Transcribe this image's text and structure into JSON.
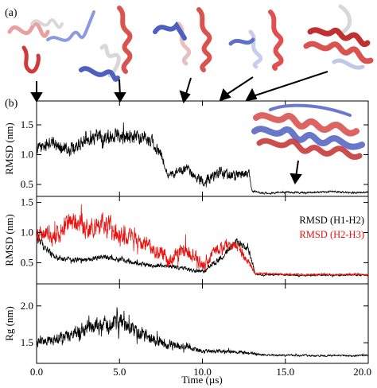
{
  "panel_labels": {
    "a": "(a)",
    "b": "(b)"
  },
  "colors": {
    "black_series": "#000000",
    "red_series": "#e8120e",
    "helix_red": "#d9534f",
    "helix_blue": "#4f5fc0",
    "helix_white": "#d8d8d8"
  },
  "structures": [
    {
      "name": "snapshot-1",
      "time_us": 0.0
    },
    {
      "name": "snapshot-2",
      "time_us": 5.0
    },
    {
      "name": "snapshot-3",
      "time_us": 9.0
    },
    {
      "name": "snapshot-4",
      "time_us": 11.0
    },
    {
      "name": "snapshot-5",
      "time_us": 12.0
    }
  ],
  "inset": {
    "name": "folded-overlay",
    "time_us": 15.5
  },
  "chart_data": [
    {
      "type": "line",
      "panel": "top",
      "ylabel": "RMSD (nm)",
      "xlim": [
        0,
        20
      ],
      "ylim": [
        0.3,
        1.9
      ],
      "yticks": [
        0.5,
        1.0,
        1.5
      ],
      "ytick_labels": [
        "0.5",
        "1.0",
        "1.5"
      ],
      "series": [
        {
          "color": "#000000",
          "x": [
            0,
            1,
            2,
            3,
            4,
            5,
            6,
            7,
            7.5,
            8,
            9,
            10,
            11,
            12,
            12.8,
            13,
            14,
            15,
            16,
            17,
            18,
            19,
            20
          ],
          "y": [
            1.1,
            1.2,
            1.05,
            1.25,
            1.3,
            1.35,
            1.3,
            1.2,
            1.0,
            0.65,
            0.75,
            0.55,
            0.7,
            0.65,
            0.7,
            0.38,
            0.35,
            0.37,
            0.36,
            0.37,
            0.38,
            0.36,
            0.37
          ],
          "noise": [
            0.15,
            0.15,
            0.15,
            0.15,
            0.18,
            0.18,
            0.15,
            0.15,
            0.15,
            0.1,
            0.12,
            0.12,
            0.15,
            0.12,
            0.1,
            0.03,
            0.025,
            0.025,
            0.025,
            0.025,
            0.025,
            0.025,
            0.025
          ]
        }
      ]
    },
    {
      "type": "line",
      "panel": "middle",
      "ylabel": "RMSD (nm)",
      "xlim": [
        0,
        20
      ],
      "ylim": [
        0.15,
        1.6
      ],
      "yticks": [
        0.5,
        1.0,
        1.5
      ],
      "ytick_labels": [
        "0.5",
        "1.0",
        "1.5"
      ],
      "legend_position": "right",
      "series": [
        {
          "name": "RMSD (H1-H2)",
          "color": "#000000",
          "x": [
            0,
            1,
            2,
            3,
            4,
            5,
            6,
            7,
            8,
            9,
            10,
            11,
            12,
            12.8,
            13.2,
            14,
            15,
            16,
            17,
            18,
            19,
            20
          ],
          "y": [
            0.9,
            0.6,
            0.55,
            0.55,
            0.6,
            0.55,
            0.5,
            0.45,
            0.45,
            0.4,
            0.35,
            0.55,
            0.85,
            0.7,
            0.3,
            0.3,
            0.3,
            0.29,
            0.3,
            0.29,
            0.3,
            0.29
          ],
          "noise": [
            0.12,
            0.08,
            0.06,
            0.06,
            0.06,
            0.06,
            0.06,
            0.05,
            0.05,
            0.05,
            0.05,
            0.08,
            0.08,
            0.08,
            0.02,
            0.02,
            0.02,
            0.02,
            0.02,
            0.02,
            0.02,
            0.02
          ]
        },
        {
          "name": "RMSD (H2-H3)",
          "color": "#e8120e",
          "x": [
            0,
            1,
            2,
            3,
            4,
            5,
            6,
            7,
            8,
            9,
            10,
            11,
            12,
            12.8,
            13.2,
            14,
            15,
            16,
            17,
            18,
            19,
            20
          ],
          "y": [
            1.0,
            0.9,
            1.2,
            1.05,
            1.15,
            1.0,
            0.95,
            0.75,
            0.55,
            0.75,
            0.45,
            0.75,
            0.8,
            0.5,
            0.32,
            0.32,
            0.31,
            0.3,
            0.31,
            0.3,
            0.31,
            0.3
          ],
          "noise": [
            0.2,
            0.25,
            0.25,
            0.25,
            0.25,
            0.25,
            0.2,
            0.2,
            0.18,
            0.2,
            0.15,
            0.15,
            0.12,
            0.1,
            0.025,
            0.025,
            0.025,
            0.025,
            0.025,
            0.025,
            0.025,
            0.025
          ]
        }
      ]
    },
    {
      "type": "line",
      "panel": "bottom",
      "ylabel": "Rg (nm)",
      "xlabel": "Time (µs)",
      "xlim": [
        0,
        20
      ],
      "ylim": [
        1.22,
        2.3
      ],
      "yticks": [
        1.5,
        2.0
      ],
      "ytick_labels": [
        "1.5",
        "2.0"
      ],
      "xticks": [
        0,
        5,
        10,
        15,
        20
      ],
      "xtick_labels": [
        "0.0",
        "5.0",
        "10.0",
        "15.0",
        "20.0"
      ],
      "series": [
        {
          "color": "#000000",
          "x": [
            0,
            1,
            2,
            3,
            4,
            5,
            6,
            7,
            8,
            9,
            10,
            11,
            12,
            13,
            14,
            15,
            16,
            17,
            18,
            19,
            20
          ],
          "y": [
            1.5,
            1.55,
            1.6,
            1.7,
            1.75,
            1.75,
            1.65,
            1.55,
            1.45,
            1.45,
            1.38,
            1.38,
            1.38,
            1.35,
            1.33,
            1.33,
            1.33,
            1.32,
            1.33,
            1.32,
            1.33
          ],
          "noise": [
            0.08,
            0.1,
            0.12,
            0.15,
            0.18,
            0.18,
            0.15,
            0.12,
            0.08,
            0.08,
            0.04,
            0.04,
            0.04,
            0.03,
            0.02,
            0.02,
            0.02,
            0.02,
            0.02,
            0.02,
            0.02
          ]
        }
      ]
    }
  ]
}
